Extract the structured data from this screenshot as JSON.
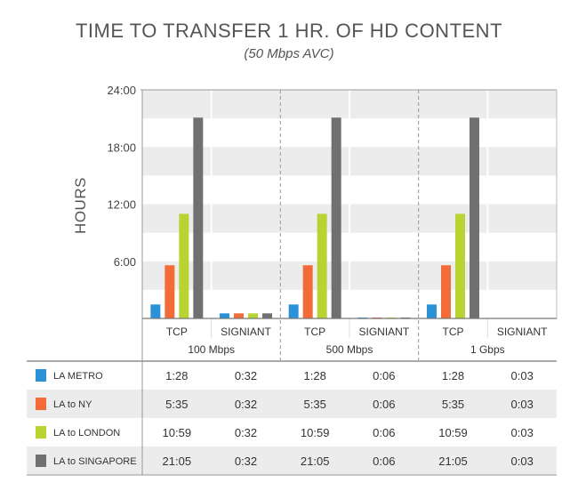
{
  "chart_data": {
    "type": "bar",
    "title": "TIME TO TRANSFER 1 HR. OF HD CONTENT",
    "subtitle": "(50 Mbps AVC)",
    "ylabel": "HOURS",
    "ylim": [
      0,
      24
    ],
    "yticks": [
      "6:00",
      "12:00",
      "18:00",
      "24:00"
    ],
    "grid": true,
    "groups": [
      {
        "name": "100 Mbps",
        "categories": [
          "TCP",
          "SIGNIANT"
        ]
      },
      {
        "name": "500 Mbps",
        "categories": [
          "TCP",
          "SIGNIANT"
        ]
      },
      {
        "name": "1 Gbps",
        "categories": [
          "TCP",
          "SIGNIANT"
        ]
      }
    ],
    "series": [
      {
        "name": "LA METRO",
        "color": "#2b92d8",
        "values": [
          1.4667,
          0.5333,
          1.4667,
          0.1,
          1.4667,
          0.05
        ],
        "labels": [
          "1:28",
          "0:32",
          "1:28",
          "0:06",
          "1:28",
          "0:03"
        ]
      },
      {
        "name": "LA to NY",
        "color": "#f26b38",
        "values": [
          5.5833,
          0.5333,
          5.5833,
          0.1,
          5.5833,
          0.05
        ],
        "labels": [
          "5:35",
          "0:32",
          "5:35",
          "0:06",
          "5:35",
          "0:03"
        ]
      },
      {
        "name": "LA to LONDON",
        "color": "#b8d432",
        "values": [
          10.9833,
          0.5333,
          10.9833,
          0.1,
          10.9833,
          0.05
        ],
        "labels": [
          "10:59",
          "0:32",
          "10:59",
          "0:06",
          "10:59",
          "0:03"
        ]
      },
      {
        "name": "LA to SINGAPORE",
        "color": "#707070",
        "values": [
          21.0833,
          0.5333,
          21.0833,
          0.1,
          21.0833,
          0.05
        ],
        "labels": [
          "21:05",
          "0:32",
          "21:05",
          "0:06",
          "21:05",
          "0:03"
        ]
      }
    ]
  }
}
